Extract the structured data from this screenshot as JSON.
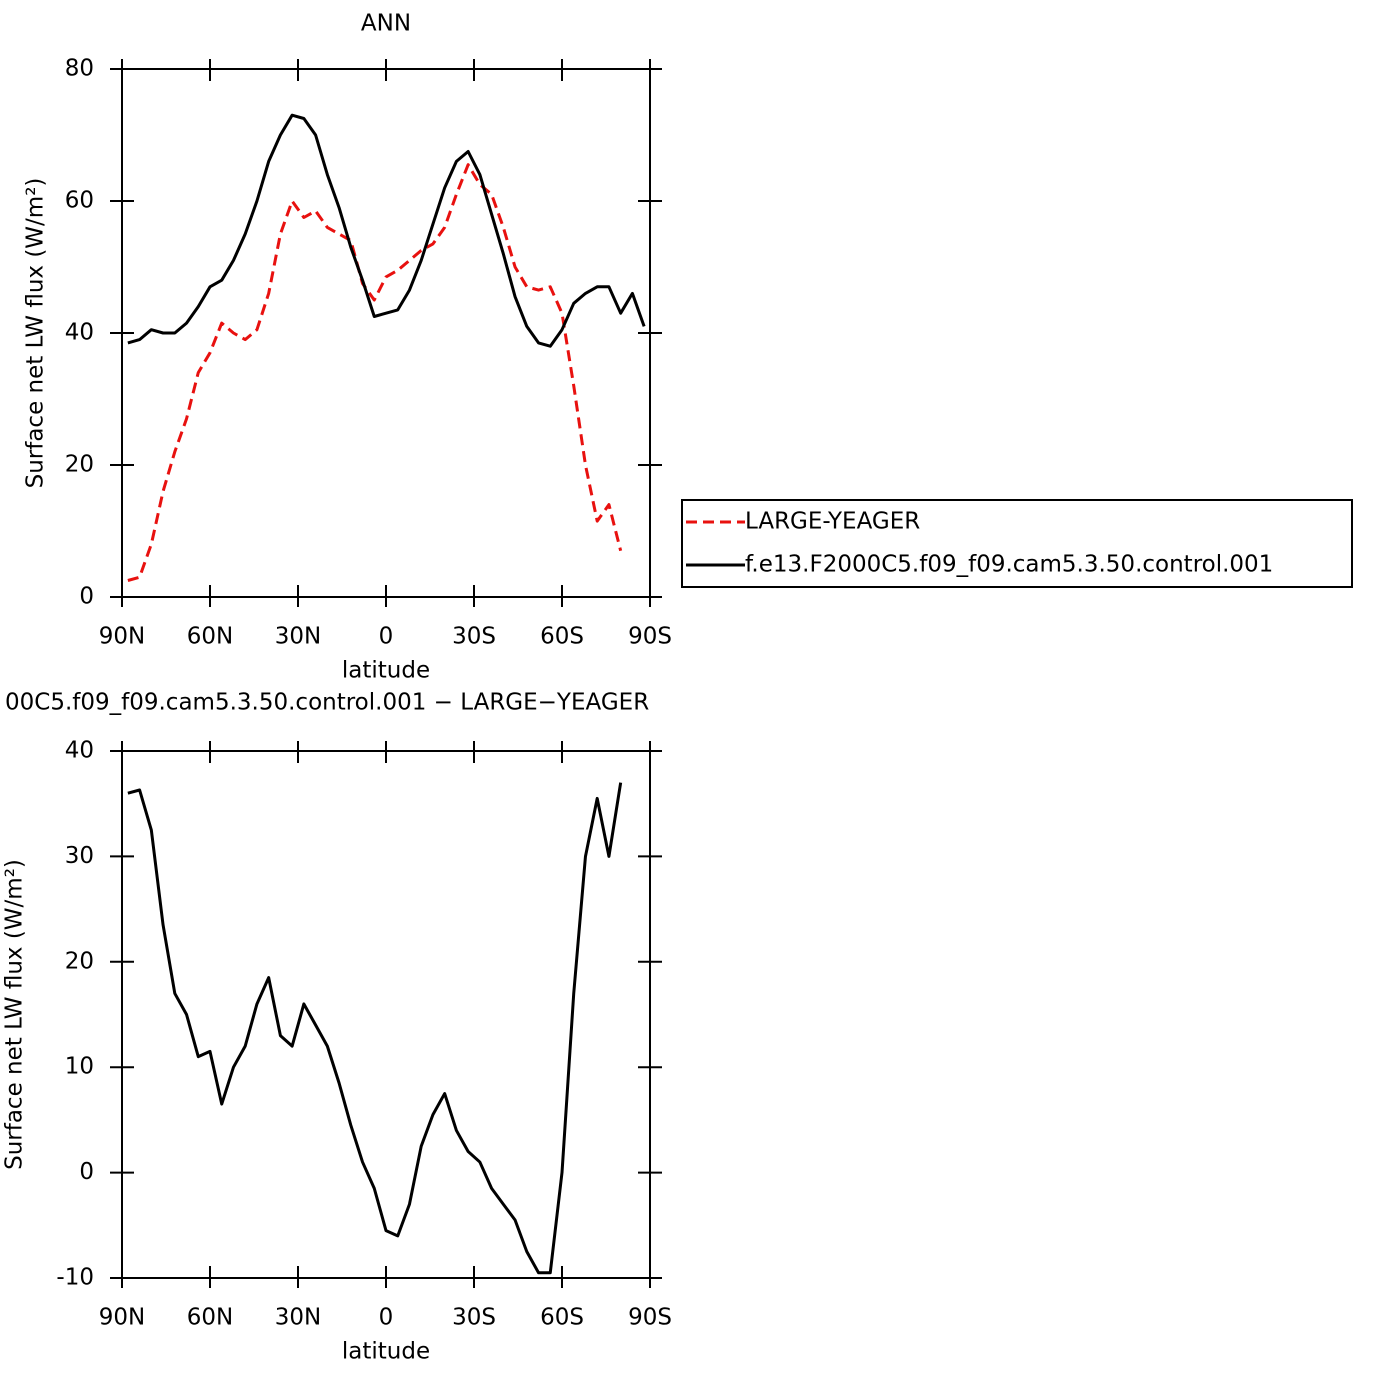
{
  "chart_data": [
    {
      "type": "line",
      "title": "ANN",
      "xlabel": "latitude",
      "ylabel": "Surface net LW flux (W/m²)",
      "x": [
        88,
        84,
        80,
        76,
        72,
        68,
        64,
        60,
        56,
        52,
        48,
        44,
        40,
        36,
        32,
        28,
        24,
        20,
        16,
        12,
        8,
        4,
        0,
        -4,
        -8,
        -12,
        -16,
        -20,
        -24,
        -28,
        -32,
        -36,
        -40,
        -44,
        -48,
        -52,
        -56,
        -60,
        -64,
        -68,
        -72,
        -76,
        -80,
        -84,
        -88
      ],
      "xlim": [
        90,
        -90
      ],
      "xticks": [
        {
          "value": 90,
          "label": "90N"
        },
        {
          "value": 60,
          "label": "60N"
        },
        {
          "value": 30,
          "label": "30N"
        },
        0,
        {
          "value": -30,
          "label": "30S"
        },
        {
          "value": -60,
          "label": "60S"
        },
        {
          "value": -90,
          "label": "90S"
        }
      ],
      "ylim": [
        0,
        80
      ],
      "yticks": [
        0,
        20,
        40,
        60,
        80
      ],
      "legend": "outside-right",
      "series": [
        {
          "name": "LARGE-YEAGER",
          "color": "#e8110f",
          "dashed": true,
          "values": [
            2.5,
            3,
            8,
            16,
            22,
            27,
            34,
            37,
            41.5,
            40,
            39,
            40.5,
            46,
            55,
            60,
            57.5,
            58.5,
            56,
            55,
            54,
            47.5,
            45,
            48.5,
            49.5,
            51,
            52.5,
            53.5,
            56,
            61,
            65.5,
            62.5,
            61,
            56,
            50,
            47,
            46.5,
            47,
            43,
            32,
            20,
            11.5,
            14,
            7,
            null,
            null
          ]
        },
        {
          "name": "f.e13.F2000C5.f09_f09.cam5.3.50.control.001",
          "color": "#000000",
          "dashed": false,
          "values": [
            38.5,
            39,
            40.5,
            40,
            40,
            41.5,
            44,
            47,
            48,
            51,
            55,
            60,
            66,
            70,
            73,
            72.5,
            70,
            64,
            59,
            53,
            48,
            42.5,
            43,
            43.5,
            46.5,
            51,
            56.5,
            62,
            66,
            67.5,
            64,
            58,
            52,
            45.5,
            41,
            38.5,
            38,
            40.5,
            44.5,
            46,
            47,
            47,
            43,
            46,
            41
          ]
        }
      ]
    },
    {
      "type": "line",
      "title": "00C5.f09_f09.cam5.3.50.control.001 − LARGE−YEAGER",
      "xlabel": "latitude",
      "ylabel": "Surface net LW flux (W/m²)",
      "x": [
        88,
        84,
        80,
        76,
        72,
        68,
        64,
        60,
        56,
        52,
        48,
        44,
        40,
        36,
        32,
        28,
        24,
        20,
        16,
        12,
        8,
        4,
        0,
        -4,
        -8,
        -12,
        -16,
        -20,
        -24,
        -28,
        -32,
        -36,
        -40,
        -44,
        -48,
        -52,
        -56,
        -60,
        -64,
        -68,
        -72,
        -76,
        -80,
        -84,
        -88
      ],
      "xlim": [
        90,
        -90
      ],
      "xticks": [
        {
          "value": 90,
          "label": "90N"
        },
        {
          "value": 60,
          "label": "60N"
        },
        {
          "value": 30,
          "label": "30N"
        },
        0,
        {
          "value": -30,
          "label": "30S"
        },
        {
          "value": -60,
          "label": "60S"
        },
        {
          "value": -90,
          "label": "90S"
        }
      ],
      "ylim": [
        -10,
        40
      ],
      "yticks": [
        -10,
        0,
        10,
        20,
        30,
        40
      ],
      "series": [
        {
          "color": "#000000",
          "dashed": false,
          "values": [
            36,
            36.3,
            32.5,
            23.5,
            17,
            15,
            11,
            11.5,
            6.5,
            10,
            12,
            16,
            18.5,
            13,
            12,
            16,
            14,
            12,
            8.5,
            4.5,
            1,
            -1.5,
            -5.5,
            -6,
            -3,
            2.5,
            5.5,
            7.5,
            4,
            2,
            1,
            -1.5,
            -3,
            -4.5,
            -7.5,
            -9.5,
            -9.5,
            0,
            17,
            30,
            35.5,
            30,
            37,
            null,
            null
          ]
        }
      ]
    }
  ]
}
